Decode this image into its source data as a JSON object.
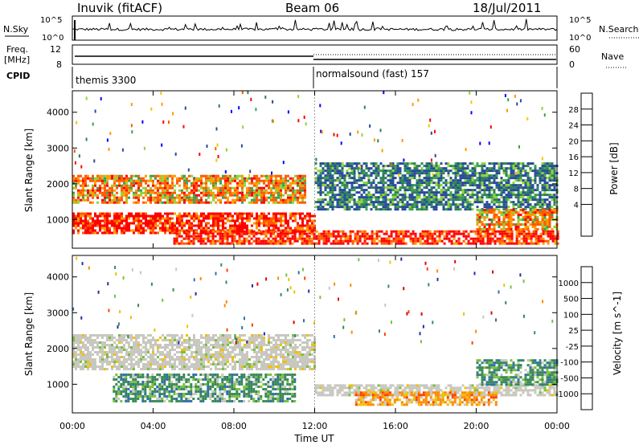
{
  "header": {
    "station": "Inuvik (fitACF)",
    "beam": "Beam 06",
    "date": "18/Jul/2011"
  },
  "top_panel": {
    "left_label_nsky": "N.Sky",
    "left_label_freq": "Freq.",
    "left_label_mhz": "[MHz]",
    "left_label_cpid": "CPID",
    "right_label_nsearch": "N.Search",
    "right_label_nave": "Nave",
    "nsky_ticks": [
      "10^5",
      "10^0"
    ],
    "nsearch_ticks": [
      "10^5",
      "10^0"
    ],
    "freq_ticks": [
      "12",
      "8"
    ],
    "nave_ticks": [
      "60",
      "0"
    ],
    "cpid_segments": [
      {
        "label": "themis 3300",
        "start_hour": 0,
        "end_hour": 12
      },
      {
        "label": "normalsound (fast) 157",
        "start_hour": 12,
        "end_hour": 24
      }
    ]
  },
  "chart_data": [
    {
      "type": "heatmap",
      "title": "",
      "xlabel": "Time UT",
      "ylabel": "Slant Range [km]",
      "x_ticks": [
        "00:00",
        "04:00",
        "08:00",
        "12:00",
        "16:00",
        "20:00",
        "00:00"
      ],
      "x_range_hours": [
        0,
        24
      ],
      "y_ticks": [
        "1000",
        "2000",
        "3000",
        "4000"
      ],
      "ylim": [
        200,
        4600
      ],
      "colorbar_label": "Power [dB]",
      "colorbar_ticks": [
        "28",
        "24",
        "20",
        "16",
        "12",
        "8",
        "4"
      ],
      "colorbar_colors": [
        "#ff0000",
        "#ff5a00",
        "#ff9a00",
        "#f0c800",
        "#8fd23c",
        "#3aa050",
        "#2f7f5a",
        "#284a9c",
        "#0000ff"
      ],
      "regions": [
        {
          "hours": [
            0,
            11.5
          ],
          "range_km": [
            1500,
            2250
          ],
          "level": "mixed-orange"
        },
        {
          "hours": [
            0,
            12
          ],
          "range_km": [
            600,
            1200
          ],
          "level": "strong-red"
        },
        {
          "hours": [
            5,
            24
          ],
          "range_km": [
            300,
            700
          ],
          "level": "strong-red"
        },
        {
          "hours": [
            12,
            24
          ],
          "range_km": [
            1300,
            2600
          ],
          "level": "weak-blue"
        },
        {
          "hours": [
            20,
            24
          ],
          "range_km": [
            700,
            1300
          ],
          "level": "mixed-orange"
        }
      ]
    },
    {
      "type": "heatmap",
      "title": "",
      "xlabel": "Time UT",
      "ylabel": "Slant Range [km]",
      "x_ticks": [
        "00:00",
        "04:00",
        "08:00",
        "12:00",
        "16:00",
        "20:00",
        "00:00"
      ],
      "x_range_hours": [
        0,
        24
      ],
      "y_ticks": [
        "1000",
        "2000",
        "3000",
        "4000"
      ],
      "ylim": [
        200,
        4600
      ],
      "colorbar_label": "Velocity [m s^-1]",
      "colorbar_ticks": [
        "1000",
        "500",
        "100",
        "25",
        "-25",
        "-100",
        "-500",
        "-1000"
      ],
      "colorbar_colors": [
        "#2030a0",
        "#2f6fb0",
        "#3a8a5a",
        "#7ac040",
        "#c8c8c0",
        "#f0c000",
        "#ff8a00",
        "#ff4000",
        "#e00000"
      ],
      "regions": [
        {
          "hours": [
            0,
            12
          ],
          "range_km": [
            1400,
            2400
          ],
          "level": "grey-ground"
        },
        {
          "hours": [
            2,
            11
          ],
          "range_km": [
            500,
            1300
          ],
          "level": "green-positive"
        },
        {
          "hours": [
            12,
            24
          ],
          "range_km": [
            700,
            1000
          ],
          "level": "grey-ground"
        },
        {
          "hours": [
            14,
            21
          ],
          "range_km": [
            400,
            800
          ],
          "level": "orange-negative"
        },
        {
          "hours": [
            20,
            24
          ],
          "range_km": [
            1000,
            1700
          ],
          "level": "green-positive"
        }
      ]
    }
  ]
}
